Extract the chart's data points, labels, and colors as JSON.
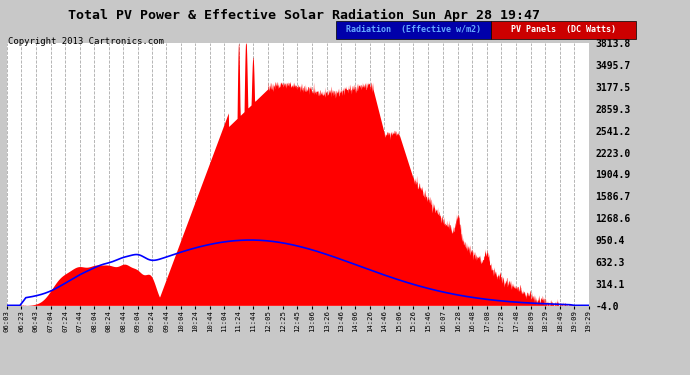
{
  "title": "Total PV Power & Effective Solar Radiation Sun Apr 28 19:47",
  "copyright": "Copyright 2013 Cartronics.com",
  "legend_blue_label": "Radiation  (Effective w/m2)",
  "legend_red_label": "PV Panels  (DC Watts)",
  "bg_color": "#c8c8c8",
  "plot_bg_color": "#ffffff",
  "yticks": [
    -4.0,
    314.1,
    632.3,
    950.4,
    1268.6,
    1586.7,
    1904.9,
    2223.0,
    2541.2,
    2859.3,
    3177.5,
    3495.7,
    3813.8
  ],
  "ymin": -4.0,
  "ymax": 3813.8,
  "red_fill_color": "#ff0000",
  "blue_line_color": "#0000ff",
  "grid_color": "#aaaaaa",
  "title_color": "#000000",
  "xtick_labels": [
    "06:03",
    "06:23",
    "06:43",
    "07:04",
    "07:24",
    "07:44",
    "08:04",
    "08:24",
    "08:44",
    "09:04",
    "09:24",
    "09:44",
    "10:04",
    "10:24",
    "10:44",
    "11:04",
    "11:24",
    "11:44",
    "12:05",
    "12:25",
    "12:45",
    "13:06",
    "13:26",
    "13:46",
    "14:06",
    "14:26",
    "14:46",
    "15:06",
    "15:26",
    "15:46",
    "16:07",
    "16:28",
    "16:48",
    "17:08",
    "17:28",
    "17:48",
    "18:09",
    "18:29",
    "18:49",
    "19:09",
    "19:29"
  ]
}
